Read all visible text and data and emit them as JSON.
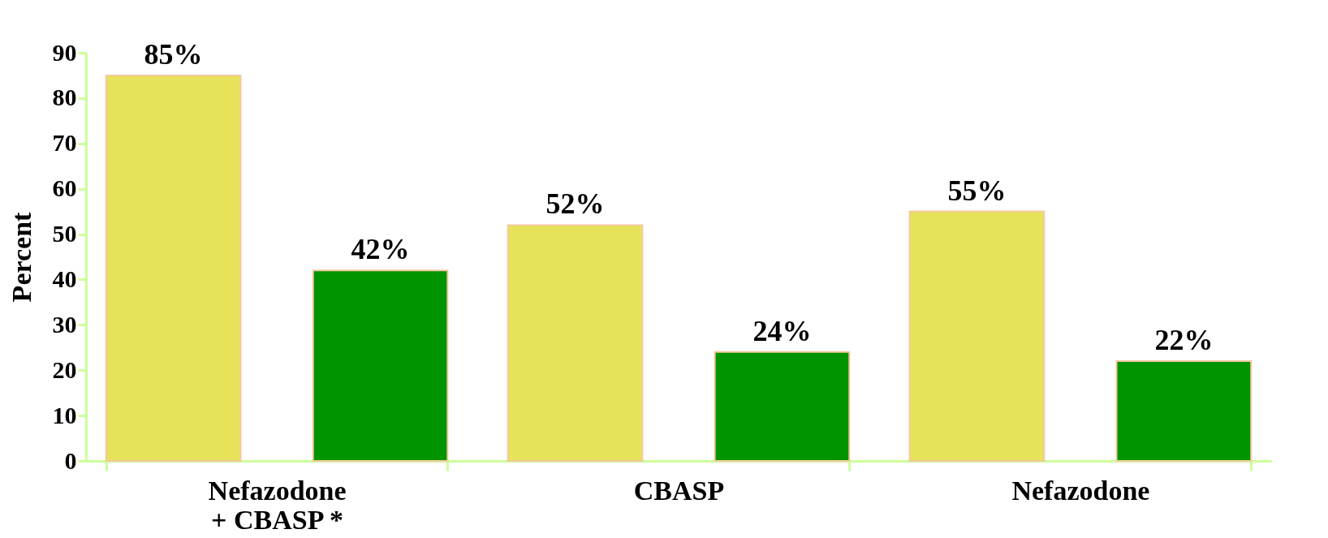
{
  "chart_data": {
    "type": "bar",
    "ylabel": "Percent",
    "categories": [
      "Nefazodone\n+ CBASP *",
      "CBASP",
      "Nefazodone"
    ],
    "series": [
      {
        "color": "#e6e35a",
        "values": [
          85,
          52,
          55
        ],
        "value_labels": [
          "85%",
          "52%",
          "55%"
        ]
      },
      {
        "color": "#009400",
        "values": [
          42,
          24,
          22
        ],
        "value_labels": [
          "42%",
          "24%",
          "22%"
        ]
      }
    ],
    "ylim": [
      0,
      90
    ],
    "yticks": [
      0,
      10,
      20,
      30,
      40,
      50,
      60,
      70,
      80,
      90
    ],
    "grid": false
  }
}
